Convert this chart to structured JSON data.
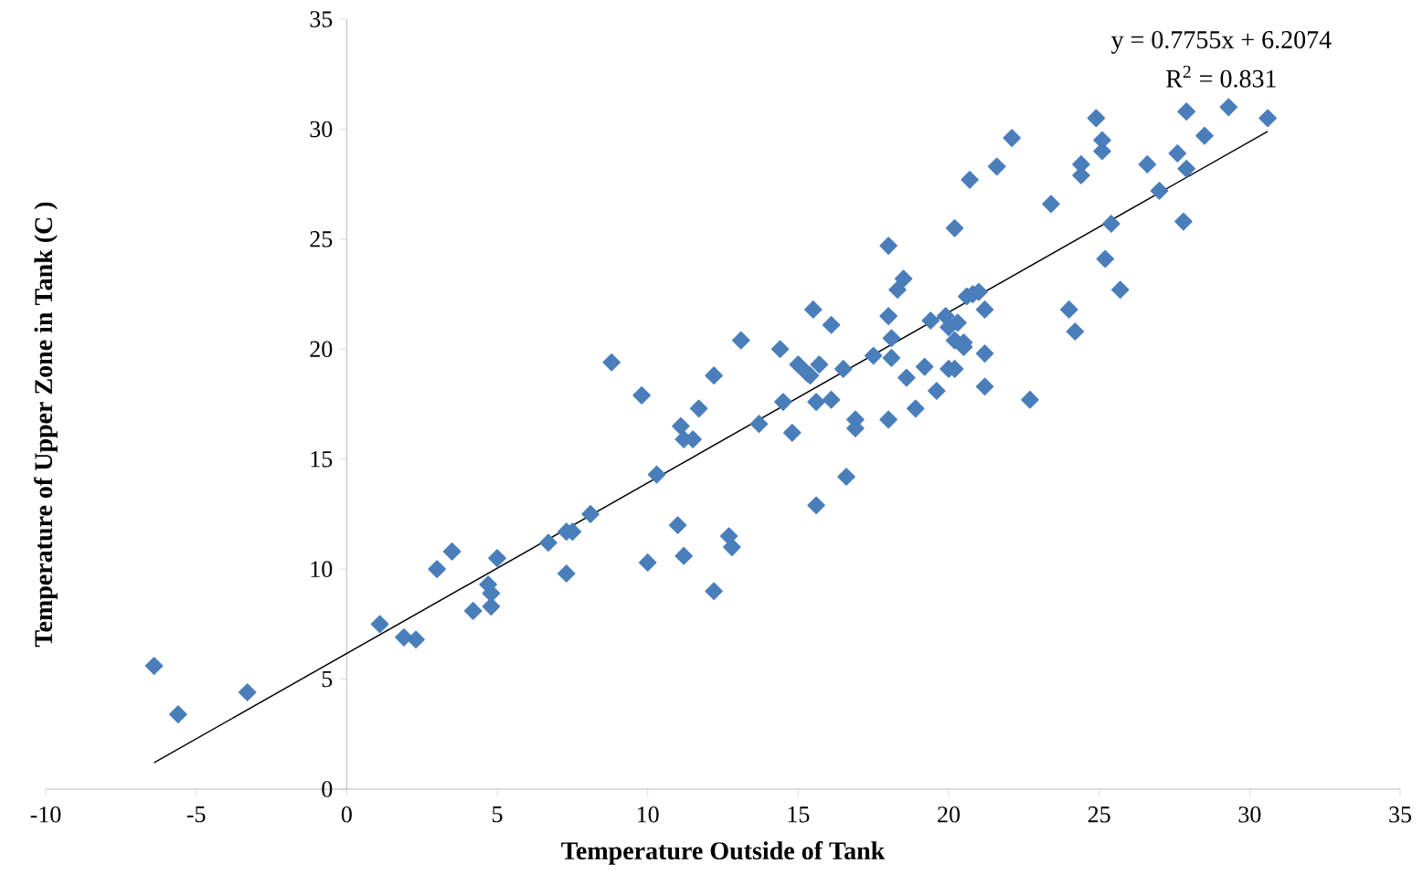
{
  "chart_data": {
    "type": "scatter",
    "xlabel": "Temperature Outside of Tank",
    "ylabel": "Temperature of Upper Zone in Tank (C )",
    "annotations": [
      "y = 0.7755x + 6.2074",
      "R$^{2}$ = 0.831"
    ],
    "xlim": [
      -10,
      35
    ],
    "ylim": [
      0,
      35
    ],
    "xticks": [
      -10,
      -5,
      0,
      5,
      10,
      15,
      20,
      25,
      30,
      35
    ],
    "yticks": [
      0,
      5,
      10,
      15,
      20,
      25,
      30,
      35
    ],
    "series": [
      {
        "marker": "diamond",
        "color": "#4a7ebb",
        "x": [
          -6.4,
          -5.6,
          -3.3,
          1.1,
          1.9,
          2.3,
          3.0,
          3.5,
          4.2,
          4.7,
          4.8,
          4.8,
          5.0,
          6.7,
          7.3,
          7.5,
          7.3,
          8.1,
          8.8,
          9.8,
          10.0,
          10.3,
          11.0,
          11.1,
          11.2,
          11.2,
          11.5,
          11.7,
          12.2,
          12.2,
          12.7,
          12.8,
          13.1,
          13.7,
          14.4,
          14.5,
          14.8,
          15.0,
          15.3,
          15.4,
          15.5,
          15.6,
          15.6,
          15.7,
          16.1,
          16.1,
          16.5,
          16.6,
          16.9,
          16.9,
          17.5,
          18.0,
          18.0,
          18.0,
          18.1,
          18.1,
          18.3,
          18.5,
          18.6,
          18.9,
          19.2,
          19.4,
          19.6,
          19.9,
          20.0,
          20.0,
          20.2,
          20.2,
          20.2,
          20.3,
          20.5,
          20.5,
          20.6,
          20.7,
          20.8,
          21.0,
          21.2,
          21.2,
          21.2,
          21.6,
          22.1,
          22.7,
          23.4,
          24.0,
          24.2,
          24.4,
          24.4,
          24.9,
          25.1,
          25.1,
          25.2,
          25.4,
          25.7,
          26.6,
          27.0,
          27.6,
          27.8,
          27.9,
          27.9,
          28.5,
          29.3,
          30.6
        ],
        "values": [
          5.6,
          3.4,
          4.4,
          7.5,
          6.9,
          6.8,
          10.0,
          10.8,
          8.1,
          9.3,
          8.9,
          8.3,
          10.5,
          11.2,
          11.7,
          11.7,
          9.8,
          12.5,
          19.4,
          17.9,
          10.3,
          14.3,
          12.0,
          16.5,
          15.9,
          10.6,
          15.9,
          17.3,
          9.0,
          18.8,
          11.5,
          11.0,
          20.4,
          16.6,
          20.0,
          17.6,
          16.2,
          19.3,
          18.9,
          18.8,
          21.8,
          17.6,
          12.9,
          19.3,
          21.1,
          17.7,
          19.1,
          14.2,
          16.8,
          16.4,
          19.7,
          24.7,
          16.8,
          21.5,
          20.5,
          19.6,
          22.7,
          23.2,
          18.7,
          17.3,
          19.2,
          21.3,
          18.1,
          21.5,
          19.1,
          21.0,
          25.5,
          20.4,
          19.1,
          21.2,
          20.3,
          20.1,
          22.4,
          27.7,
          22.5,
          22.6,
          21.8,
          19.8,
          18.3,
          28.3,
          29.6,
          17.7,
          26.6,
          21.8,
          20.8,
          27.9,
          28.4,
          30.5,
          29.0,
          29.5,
          24.1,
          25.7,
          22.7,
          28.4,
          27.2,
          28.9,
          25.8,
          30.8,
          28.2,
          29.7,
          31.0,
          30.5
        ]
      },
      {
        "type": "line",
        "color": "#000000",
        "x": [
          -6.4,
          30.6
        ],
        "values": [
          1.2,
          29.9
        ]
      }
    ]
  }
}
